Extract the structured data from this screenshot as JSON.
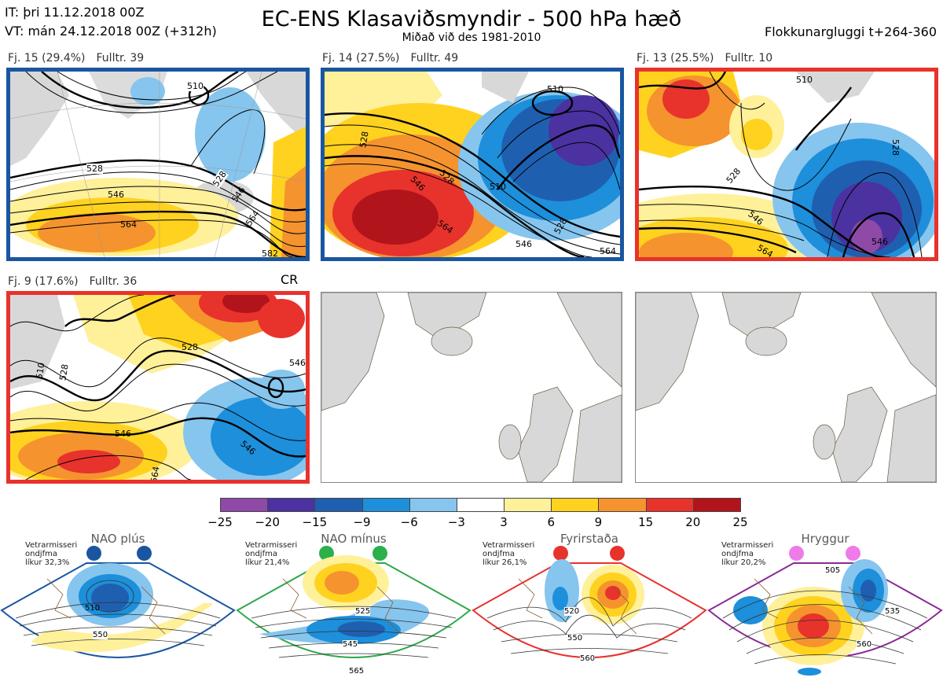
{
  "header": {
    "it_line": "IT: þri 11.12.2018 00Z",
    "vt_line": "VT: mán 24.12.2018 00Z  (+312h)",
    "title": "EC-ENS Klasaviðsmyndir - 500 hPa hæð",
    "subtitle": "Miðað við des 1981-2010",
    "window": "Flokkunargluggi t+264-360"
  },
  "panels": [
    {
      "cluster": "Fj. 15 (29.4%)",
      "members": "Fulltr. 39",
      "frame_color": "#1a56a0",
      "regime": "NAO plús"
    },
    {
      "cluster": "Fj. 14 (27.5%)",
      "members": "Fulltr. 49",
      "frame_color": "#1a56a0",
      "regime": "NAO plús"
    },
    {
      "cluster": "Fj. 13 (25.5%)",
      "members": "Fulltr. 10",
      "frame_color": "#e8322c",
      "regime": "Fyrirstaða"
    },
    {
      "cluster": "Fj. 9 (17.6%)",
      "members": "Fulltr. 36",
      "frame_color": "#e8322c",
      "regime": "Fyrirstaða",
      "tag": "CR"
    }
  ],
  "contour_labels": {
    "p1": [
      "510",
      "528",
      "528",
      "546",
      "546",
      "564",
      "564",
      "582"
    ],
    "p2": [
      "510",
      "510",
      "528",
      "528",
      "546",
      "546",
      "564",
      "528",
      "564"
    ],
    "p3": [
      "510",
      "528",
      "528",
      "546",
      "546",
      "564"
    ],
    "p4": [
      "510",
      "528",
      "528",
      "546",
      "546",
      "546",
      "564"
    ]
  },
  "colorbar": {
    "colors": [
      "#8e4aa6",
      "#4b32a0",
      "#1f5fb0",
      "#1d8fdb",
      "#86c5ee",
      "#ffffff",
      "#fff09a",
      "#ffd21f",
      "#f5932f",
      "#e8322c",
      "#b2141b"
    ],
    "ticks": [
      "−25",
      "−20",
      "−15",
      "−9",
      "−6",
      "−3",
      "3",
      "6",
      "9",
      "15",
      "20",
      "25"
    ]
  },
  "regimes": [
    {
      "name": "NAO plús",
      "note": [
        "Vetrarmisseri",
        "ondjfma",
        "líkur 32,3%"
      ],
      "color": "#1a56a0",
      "dot_color": "#1a56a0",
      "labels": [
        "510",
        "550"
      ]
    },
    {
      "name": "NAO mínus",
      "note": [
        "Vetrarmisseri",
        "ondjfma",
        "líkur 21,4%"
      ],
      "color": "#2ea84a",
      "dot_color": "#2bb04a",
      "labels": [
        "525",
        "545",
        "565"
      ]
    },
    {
      "name": "Fyrirstaða",
      "note": [
        "Vetrarmisseri",
        "ondjfma",
        "líkur 26,1%"
      ],
      "color": "#e8322c",
      "dot_color": "#e8322c",
      "labels": [
        "520",
        "550",
        "560"
      ]
    },
    {
      "name": "Hryggur",
      "note": [
        "Vetrarmisseri",
        "ondjfma",
        "líkur 20,2%"
      ],
      "color": "#8a2a96",
      "dot_color": "#ee7be8",
      "labels": [
        "505",
        "535",
        "560"
      ]
    }
  ]
}
